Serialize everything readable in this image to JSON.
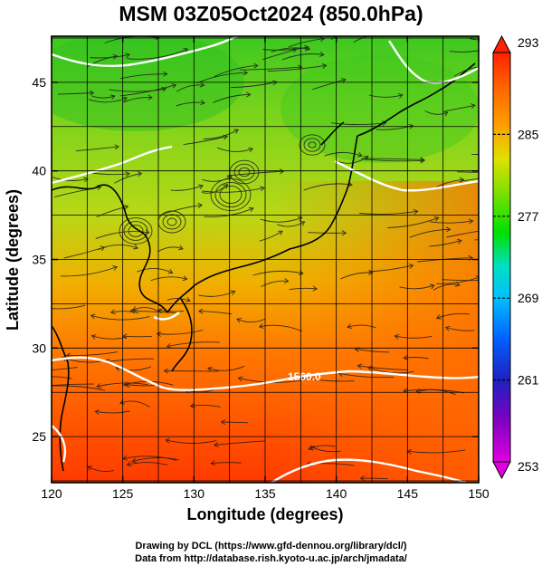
{
  "title": "MSM 03Z05Oct2024 (850.0hPa)",
  "credits": [
    "Drawing by DCL (https://www.gfd-dennou.org/library/dcl/)",
    "Data from http://database.rish.kyoto-u.ac.jp/arch/jmadata/"
  ],
  "chart_data": {
    "type": "heatmap",
    "variable_units_hint": "temperature",
    "xlabel": "Longitude (degrees)",
    "ylabel": "Latitude  (degrees)",
    "xlim": [
      120,
      150
    ],
    "ylim": [
      22.4,
      47.6
    ],
    "xticks": [
      120,
      125,
      130,
      135,
      140,
      145,
      150
    ],
    "yticks": [
      25,
      30,
      35,
      40,
      45
    ],
    "colorbar": {
      "min": 253,
      "max": 293,
      "labels": [
        253,
        261,
        269,
        277,
        285,
        293
      ],
      "colors": [
        "#e000e0",
        "#8000c0",
        "#2020c0",
        "#0060ff",
        "#00c0ff",
        "#00e0c0",
        "#00e000",
        "#80e000",
        "#e0e000",
        "#ffa000",
        "#ff6000",
        "#ff2000"
      ]
    },
    "contour": {
      "label": "1560.0",
      "color": "#ffffff"
    },
    "grid": true
  }
}
